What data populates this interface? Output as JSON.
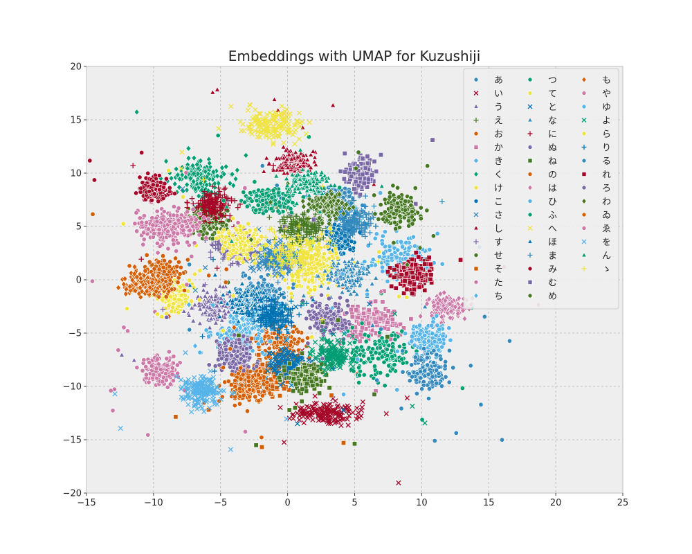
{
  "chart_data": {
    "type": "scatter",
    "title": "Embeddings with UMAP for Kuzushiji",
    "xlabel": "",
    "ylabel": "",
    "xlim": [
      -15,
      25
    ],
    "ylim": [
      -20,
      20
    ],
    "xticks": [
      -15,
      -10,
      -5,
      0,
      5,
      10,
      15,
      20,
      25
    ],
    "yticks": [
      -20,
      -15,
      -10,
      -5,
      0,
      5,
      10,
      15,
      20
    ],
    "xtick_labels": [
      "−15",
      "−10",
      "−5",
      "0",
      "5",
      "10",
      "15",
      "20",
      "25"
    ],
    "ytick_labels": [
      "−20",
      "−15",
      "−10",
      "−5",
      "0",
      "5",
      "10",
      "15",
      "20"
    ],
    "grid": true,
    "legend_position": "top-right",
    "series": [
      {
        "name": "あ",
        "color": "#348ABD",
        "marker": "circle",
        "clusters": [
          [
            3.5,
            7.5,
            1.5,
            1.4
          ],
          [
            -2.0,
            -1.5,
            2.0,
            1.5
          ]
        ]
      },
      {
        "name": "い",
        "color": "#A60628",
        "marker": "x",
        "clusters": [
          [
            3.0,
            -12.5,
            2.5,
            1.0
          ]
        ]
      },
      {
        "name": "う",
        "color": "#7A68A6",
        "marker": "triangle",
        "clusters": [
          [
            -5.5,
            -2.5,
            1.5,
            1.5
          ]
        ]
      },
      {
        "name": "え",
        "color": "#467821",
        "marker": "plus",
        "clusters": [
          [
            1.0,
            5.0,
            2.0,
            1.5
          ]
        ]
      },
      {
        "name": "お",
        "color": "#D55E00",
        "marker": "circle",
        "clusters": [
          [
            -0.5,
            -6.0,
            2.0,
            2.0
          ]
        ]
      },
      {
        "name": "か",
        "color": "#CC79A7",
        "marker": "square",
        "clusters": [
          [
            6.0,
            -4.0,
            2.0,
            1.5
          ]
        ]
      },
      {
        "name": "き",
        "color": "#56B4E9",
        "marker": "circle",
        "clusters": [
          [
            -3.5,
            -5.0,
            2.0,
            2.0
          ]
        ]
      },
      {
        "name": "く",
        "color": "#009E73",
        "marker": "diamond",
        "clusters": [
          [
            -6.5,
            9.5,
            2.0,
            1.5
          ]
        ]
      },
      {
        "name": "け",
        "color": "#F0E442",
        "marker": "circle",
        "clusters": [
          [
            -8.5,
            -1.5,
            1.5,
            1.5
          ]
        ]
      },
      {
        "name": "こ",
        "color": "#0072B2",
        "marker": "circle",
        "clusters": [
          [
            4.0,
            4.0,
            1.0,
            1.5
          ]
        ]
      },
      {
        "name": "さ",
        "color": "#348ABD",
        "marker": "x",
        "clusters": [
          [
            -1.0,
            2.0,
            2.0,
            1.5
          ]
        ]
      },
      {
        "name": "し",
        "color": "#A60628",
        "marker": "triangle",
        "clusters": [
          [
            0.5,
            11.0,
            1.5,
            1.0
          ]
        ]
      },
      {
        "name": "す",
        "color": "#7A68A6",
        "marker": "plus",
        "clusters": [
          [
            -4.0,
            3.0,
            1.5,
            1.5
          ]
        ]
      },
      {
        "name": "せ",
        "color": "#467821",
        "marker": "circle",
        "clusters": [
          [
            -6.0,
            5.5,
            1.5,
            1.5
          ]
        ]
      },
      {
        "name": "そ",
        "color": "#D55E00",
        "marker": "square",
        "clusters": [
          [
            -1.5,
            -9.0,
            2.0,
            1.5
          ]
        ]
      },
      {
        "name": "た",
        "color": "#CC79A7",
        "marker": "circle",
        "clusters": [
          [
            -9.5,
            5.0,
            1.5,
            1.5
          ]
        ]
      },
      {
        "name": "ち",
        "color": "#56B4E9",
        "marker": "diamond",
        "clusters": [
          [
            -2.5,
            -3.0,
            1.5,
            1.5
          ]
        ]
      },
      {
        "name": "つ",
        "color": "#009E73",
        "marker": "circle",
        "clusters": [
          [
            7.0,
            -7.0,
            2.5,
            2.0
          ]
        ]
      },
      {
        "name": "て",
        "color": "#F0E442",
        "marker": "circle",
        "clusters": [
          [
            2.0,
            1.0,
            2.0,
            2.0
          ]
        ]
      },
      {
        "name": "と",
        "color": "#0072B2",
        "marker": "x",
        "clusters": [
          [
            0.0,
            -8.0,
            1.5,
            1.5
          ]
        ]
      },
      {
        "name": "な",
        "color": "#348ABD",
        "marker": "triangle",
        "clusters": [
          [
            4.5,
            0.5,
            1.5,
            1.5
          ]
        ]
      },
      {
        "name": "に",
        "color": "#A60628",
        "marker": "plus",
        "clusters": [
          [
            -5.5,
            7.0,
            1.5,
            1.5
          ]
        ]
      },
      {
        "name": "ぬ",
        "color": "#7A68A6",
        "marker": "circle",
        "clusters": [
          [
            3.0,
            -3.5,
            1.5,
            1.5
          ]
        ]
      },
      {
        "name": "ね",
        "color": "#467821",
        "marker": "square",
        "clusters": [
          [
            1.5,
            -9.0,
            1.5,
            1.5
          ]
        ]
      },
      {
        "name": "の",
        "color": "#D55E00",
        "marker": "circle",
        "clusters": [
          [
            -9.5,
            0.5,
            1.5,
            1.5
          ]
        ]
      },
      {
        "name": "は",
        "color": "#CC79A7",
        "marker": "diamond",
        "clusters": [
          [
            12.0,
            -2.5,
            1.5,
            1.0
          ]
        ]
      },
      {
        "name": "ひ",
        "color": "#56B4E9",
        "marker": "circle",
        "clusters": [
          [
            8.5,
            2.0,
            2.0,
            2.0
          ]
        ]
      },
      {
        "name": "ふ",
        "color": "#009E73",
        "marker": "circle",
        "clusters": [
          [
            -1.5,
            7.5,
            2.0,
            1.2
          ]
        ]
      },
      {
        "name": "へ",
        "color": "#F0E442",
        "marker": "x",
        "clusters": [
          [
            -1.0,
            14.5,
            2.5,
            1.5
          ]
        ]
      },
      {
        "name": "ほ",
        "color": "#0072B2",
        "marker": "triangle",
        "clusters": [
          [
            -3.0,
            -2.0,
            1.5,
            1.5
          ]
        ]
      },
      {
        "name": "ま",
        "color": "#348ABD",
        "marker": "plus",
        "clusters": [
          [
            5.0,
            5.5,
            1.5,
            1.5
          ]
        ]
      },
      {
        "name": "み",
        "color": "#A60628",
        "marker": "circle",
        "clusters": [
          [
            -10.0,
            8.5,
            1.0,
            1.0
          ]
        ]
      },
      {
        "name": "む",
        "color": "#7A68A6",
        "marker": "square",
        "clusters": [
          [
            5.5,
            10.0,
            1.0,
            1.5
          ]
        ]
      },
      {
        "name": "め",
        "color": "#467821",
        "marker": "circle",
        "clusters": [
          [
            8.5,
            6.5,
            1.5,
            1.5
          ]
        ]
      },
      {
        "name": "も",
        "color": "#D55E00",
        "marker": "diamond",
        "clusters": [
          [
            -10.5,
            -0.5,
            1.5,
            1.0
          ]
        ]
      },
      {
        "name": "や",
        "color": "#CC79A7",
        "marker": "circle",
        "clusters": [
          [
            -9.5,
            -8.5,
            1.5,
            1.5
          ]
        ]
      },
      {
        "name": "ゆ",
        "color": "#56B4E9",
        "marker": "circle",
        "clusters": [
          [
            10.5,
            -5.5,
            1.5,
            1.5
          ]
        ]
      },
      {
        "name": "よ",
        "color": "#009E73",
        "marker": "x",
        "clusters": [
          [
            3.5,
            -7.0,
            1.5,
            1.5
          ]
        ]
      },
      {
        "name": "ら",
        "color": "#F0E442",
        "marker": "circle",
        "clusters": [
          [
            -3.5,
            3.5,
            1.5,
            1.5
          ]
        ]
      },
      {
        "name": "り",
        "color": "#0072B2",
        "marker": "plus",
        "clusters": [
          [
            -1.0,
            -3.5,
            1.5,
            1.5
          ]
        ]
      },
      {
        "name": "る",
        "color": "#348ABD",
        "marker": "circle",
        "clusters": [
          [
            10.5,
            -8.5,
            1.5,
            1.5
          ]
        ]
      },
      {
        "name": "れ",
        "color": "#A60628",
        "marker": "square",
        "clusters": [
          [
            9.5,
            0.5,
            1.5,
            1.5
          ]
        ]
      },
      {
        "name": "ろ",
        "color": "#7A68A6",
        "marker": "circle",
        "clusters": [
          [
            -4.0,
            -7.0,
            1.5,
            1.5
          ]
        ]
      },
      {
        "name": "わ",
        "color": "#467821",
        "marker": "diamond",
        "clusters": [
          [
            3.0,
            7.0,
            1.5,
            1.2
          ]
        ]
      },
      {
        "name": "ゐ",
        "color": "#D55E00",
        "marker": "circle",
        "clusters": [
          [
            -3.0,
            -10.0,
            1.5,
            1.5
          ]
        ]
      },
      {
        "name": "ゑ",
        "color": "#CC79A7",
        "marker": "circle",
        "clusters": [
          [
            -8.0,
            5.0,
            1.5,
            1.5
          ]
        ]
      },
      {
        "name": "を",
        "color": "#56B4E9",
        "marker": "x",
        "clusters": [
          [
            -6.5,
            -10.5,
            1.5,
            1.5
          ]
        ]
      },
      {
        "name": "ん",
        "color": "#009E73",
        "marker": "triangle",
        "clusters": [
          [
            1.5,
            9.0,
            1.5,
            1.0
          ]
        ]
      },
      {
        "name": "ゝ",
        "color": "#F0E442",
        "marker": "plus",
        "clusters": [
          [
            0.5,
            2.5,
            2.5,
            2.0
          ]
        ]
      }
    ]
  }
}
